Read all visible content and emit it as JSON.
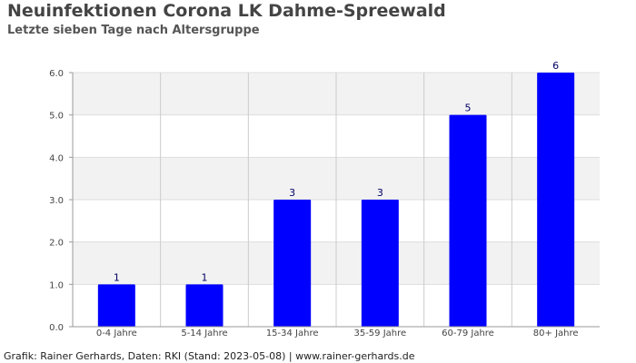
{
  "chart_data": {
    "type": "bar",
    "title": "Neuinfektionen Corona LK Dahme-Spreewald",
    "subtitle": "Letzte sieben Tage nach Altersgruppe",
    "categories": [
      "0-4 Jahre",
      "5-14 Jahre",
      "15-34 Jahre",
      "35-59 Jahre",
      "60-79 Jahre",
      "80+ Jahre"
    ],
    "values": [
      1,
      1,
      3,
      3,
      5,
      6
    ],
    "data_labels": [
      "1",
      "1",
      "3",
      "3",
      "5",
      "6"
    ],
    "ylim": [
      0,
      6
    ],
    "yticks": [
      "0.0",
      "1.0",
      "2.0",
      "3.0",
      "4.0",
      "5.0",
      "6.0"
    ],
    "xlabel": "",
    "ylabel": "",
    "grid": true,
    "legend": "none",
    "colors": {
      "bar": "#0000ff",
      "band_alt": "#f2f2f2",
      "grid": "#dddddd",
      "data_label": "#000066",
      "tick_label": "#444444"
    }
  },
  "footer": "Grafik: Rainer Gerhards, Daten: RKI (Stand: 2023-05-08) | www.rainer-gerhards.de"
}
